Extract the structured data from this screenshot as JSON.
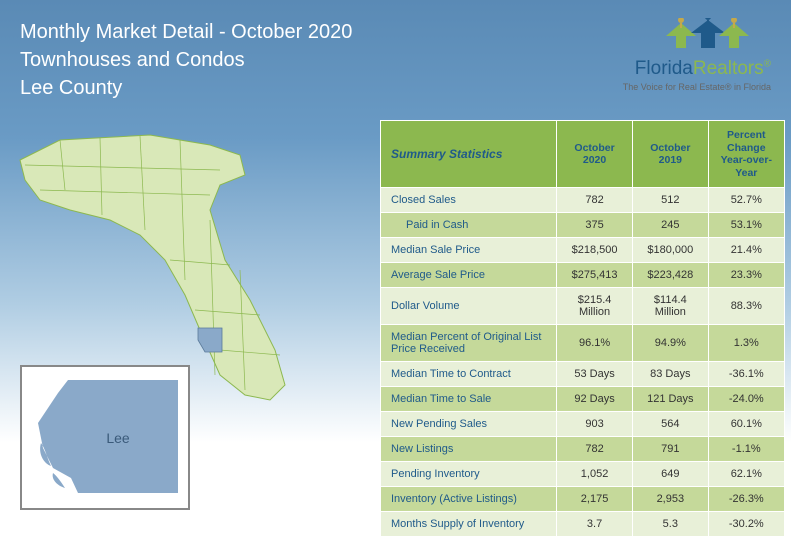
{
  "header": {
    "line1": "Monthly Market Detail - October 2020",
    "line2": "Townhouses and Condos",
    "line3": "Lee County"
  },
  "logo": {
    "brand_part1": "Florida",
    "brand_part2": "Realtors",
    "reg": "®",
    "tagline": "The Voice for Real Estate® in Florida"
  },
  "county": {
    "name": "Lee",
    "fill_color": "#8aa9c9"
  },
  "table": {
    "headers": {
      "summary": "Summary Statistics",
      "col1": "October 2020",
      "col2": "October 2019",
      "col3_line1": "Percent Change",
      "col3_line2": "Year-over-Year"
    },
    "rows": [
      {
        "metric": "Closed Sales",
        "indent": false,
        "v1": "782",
        "v2": "512",
        "pct": "52.7%"
      },
      {
        "metric": "Paid in Cash",
        "indent": true,
        "v1": "375",
        "v2": "245",
        "pct": "53.1%"
      },
      {
        "metric": "Median Sale Price",
        "indent": false,
        "v1": "$218,500",
        "v2": "$180,000",
        "pct": "21.4%"
      },
      {
        "metric": "Average Sale Price",
        "indent": false,
        "v1": "$275,413",
        "v2": "$223,428",
        "pct": "23.3%"
      },
      {
        "metric": "Dollar Volume",
        "indent": false,
        "v1": "$215.4 Million",
        "v2": "$114.4 Million",
        "pct": "88.3%"
      },
      {
        "metric": "Median Percent of Original List Price Received",
        "indent": false,
        "v1": "96.1%",
        "v2": "94.9%",
        "pct": "1.3%"
      },
      {
        "metric": "Median Time to Contract",
        "indent": false,
        "v1": "53 Days",
        "v2": "83 Days",
        "pct": "-36.1%"
      },
      {
        "metric": "Median Time to Sale",
        "indent": false,
        "v1": "92 Days",
        "v2": "121 Days",
        "pct": "-24.0%"
      },
      {
        "metric": "New Pending Sales",
        "indent": false,
        "v1": "903",
        "v2": "564",
        "pct": "60.1%"
      },
      {
        "metric": "New Listings",
        "indent": false,
        "v1": "782",
        "v2": "791",
        "pct": "-1.1%"
      },
      {
        "metric": "Pending Inventory",
        "indent": false,
        "v1": "1,052",
        "v2": "649",
        "pct": "62.1%"
      },
      {
        "metric": "Inventory (Active Listings)",
        "indent": false,
        "v1": "2,175",
        "v2": "2,953",
        "pct": "-26.3%"
      },
      {
        "metric": "Months Supply of Inventory",
        "indent": false,
        "v1": "3.7",
        "v2": "5.3",
        "pct": "-30.2%"
      }
    ]
  },
  "colors": {
    "header_green": "#8cb84f",
    "row_light": "#e8f0d8",
    "row_dark": "#c5d99a",
    "text_blue": "#1f5a8a",
    "map_fill": "#d9e8b8",
    "map_stroke": "#8cb84f"
  }
}
